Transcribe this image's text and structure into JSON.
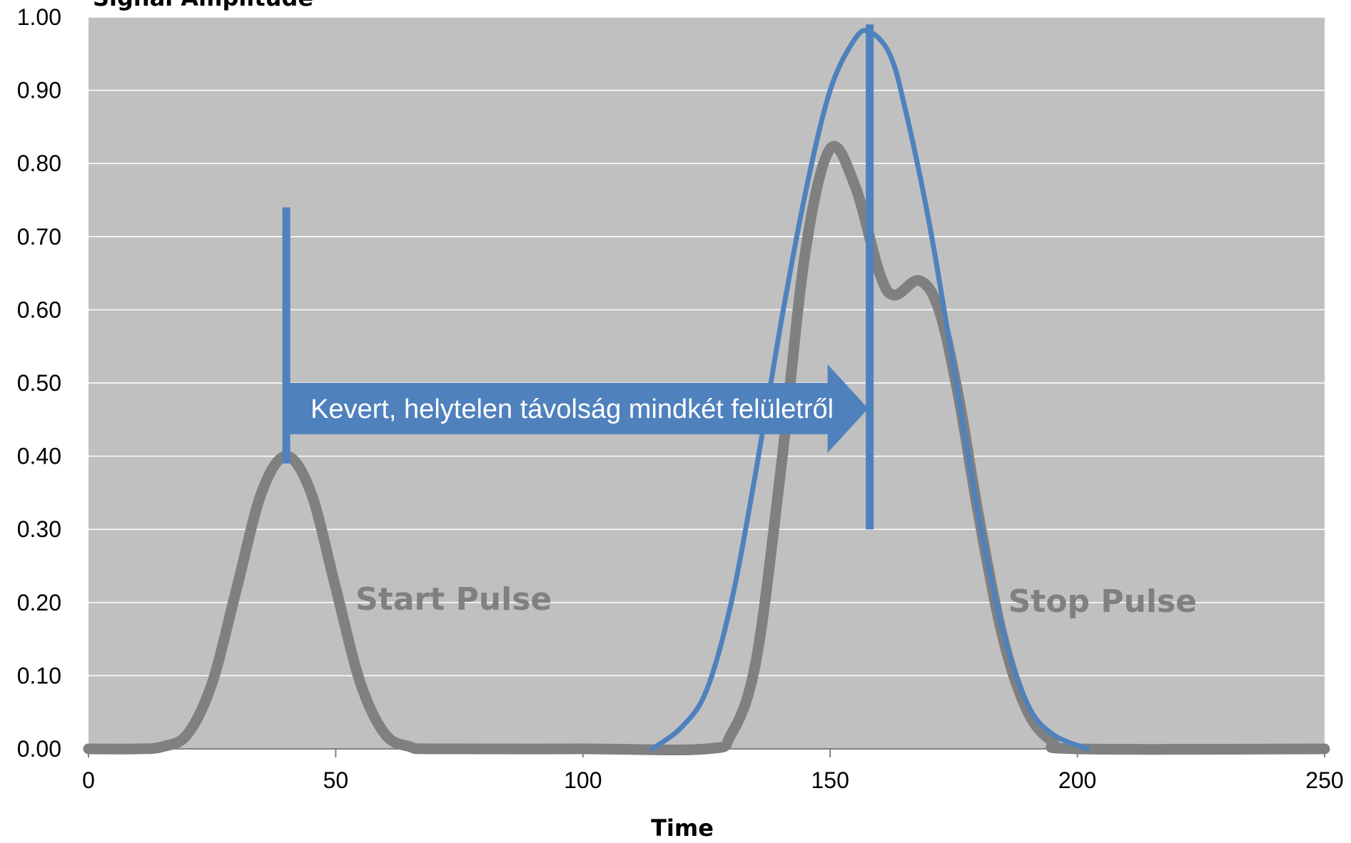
{
  "chart_data": {
    "type": "line",
    "title": "",
    "xlabel": "Time",
    "ylabel": "Signal Amplitude",
    "xlim": [
      0,
      250
    ],
    "ylim": [
      0,
      1.0
    ],
    "x_ticks": [
      "0",
      "50",
      "100",
      "150",
      "200",
      "250"
    ],
    "y_ticks": [
      "0.00",
      "0.10",
      "0.20",
      "0.30",
      "0.40",
      "0.50",
      "0.60",
      "0.70",
      "0.80",
      "0.90",
      "1.00"
    ],
    "grid": true,
    "series": [
      {
        "color": "#808080",
        "points": [
          [
            0,
            0.0
          ],
          [
            10,
            0.0
          ],
          [
            15,
            0.003
          ],
          [
            20,
            0.02
          ],
          [
            25,
            0.09
          ],
          [
            30,
            0.22
          ],
          [
            35,
            0.35
          ],
          [
            40,
            0.4
          ],
          [
            45,
            0.35
          ],
          [
            50,
            0.22
          ],
          [
            55,
            0.09
          ],
          [
            60,
            0.02
          ],
          [
            65,
            0.003
          ],
          [
            70,
            0.0
          ],
          [
            100,
            0.0
          ],
          [
            125,
            0.0
          ],
          [
            130,
            0.02
          ],
          [
            135,
            0.12
          ],
          [
            140,
            0.38
          ],
          [
            145,
            0.68
          ],
          [
            150,
            0.82
          ],
          [
            155,
            0.77
          ],
          [
            160,
            0.65
          ],
          [
            163,
            0.62
          ],
          [
            168,
            0.64
          ],
          [
            172,
            0.6
          ],
          [
            176,
            0.48
          ],
          [
            180,
            0.32
          ],
          [
            185,
            0.15
          ],
          [
            190,
            0.05
          ],
          [
            195,
            0.01
          ],
          [
            200,
            0.0
          ],
          [
            250,
            0.0
          ]
        ]
      },
      {
        "color": "#4f81bd",
        "points": [
          [
            114,
            0.0
          ],
          [
            120,
            0.03
          ],
          [
            125,
            0.08
          ],
          [
            130,
            0.2
          ],
          [
            135,
            0.38
          ],
          [
            140,
            0.58
          ],
          [
            145,
            0.76
          ],
          [
            150,
            0.9
          ],
          [
            155,
            0.97
          ],
          [
            158,
            0.98
          ],
          [
            162,
            0.95
          ],
          [
            165,
            0.88
          ],
          [
            170,
            0.72
          ],
          [
            175,
            0.52
          ],
          [
            180,
            0.32
          ],
          [
            185,
            0.16
          ],
          [
            190,
            0.06
          ],
          [
            195,
            0.02
          ],
          [
            202,
            0.0
          ]
        ]
      }
    ],
    "markers": [
      {
        "color": "#4f81bd",
        "x": 40,
        "y_from": 0.39,
        "y_to": 0.74
      },
      {
        "color": "#4f81bd",
        "x": 158,
        "y_from": 0.3,
        "y_to": 0.99
      }
    ],
    "annotations": {
      "start_label": "Start Pulse",
      "stop_label": "Stop Pulse",
      "arrow": {
        "text": "Kevert, helytelen távolság mindkét felületről",
        "x_from": 40,
        "x_to": 158,
        "y": 0.465,
        "color": "#4f81bd"
      }
    },
    "plot_background": "#c0c0c0"
  }
}
